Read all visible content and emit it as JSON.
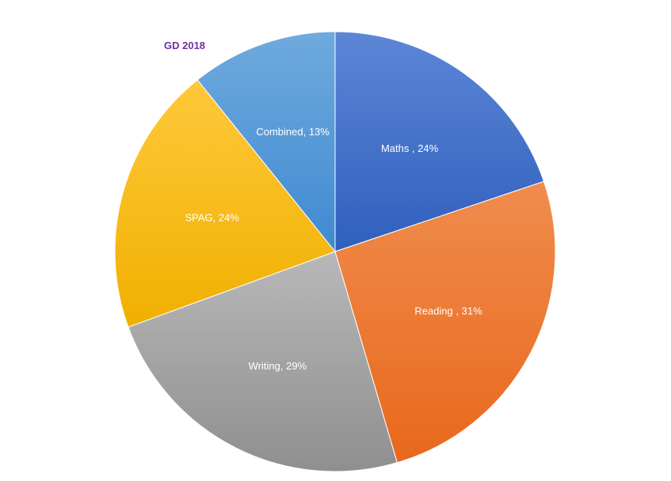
{
  "chart_data": {
    "type": "pie",
    "title": "GD 2018",
    "slices": [
      {
        "label": "Maths ",
        "value": 24,
        "display": "Maths , 24%",
        "color": "#4472c4"
      },
      {
        "label": "Reading ",
        "value": 31,
        "display": "Reading , 31%",
        "color": "#ed7d31"
      },
      {
        "label": "Writing",
        "value": 29,
        "display": "Writing, 29%",
        "color": "#a5a5a5"
      },
      {
        "label": "SPAG",
        "value": 24,
        "display": "SPAG, 24%",
        "color": "#ffc000"
      },
      {
        "label": "Combined",
        "value": 13,
        "display": "Combined, 13%",
        "color": "#5b9bd5"
      }
    ]
  }
}
